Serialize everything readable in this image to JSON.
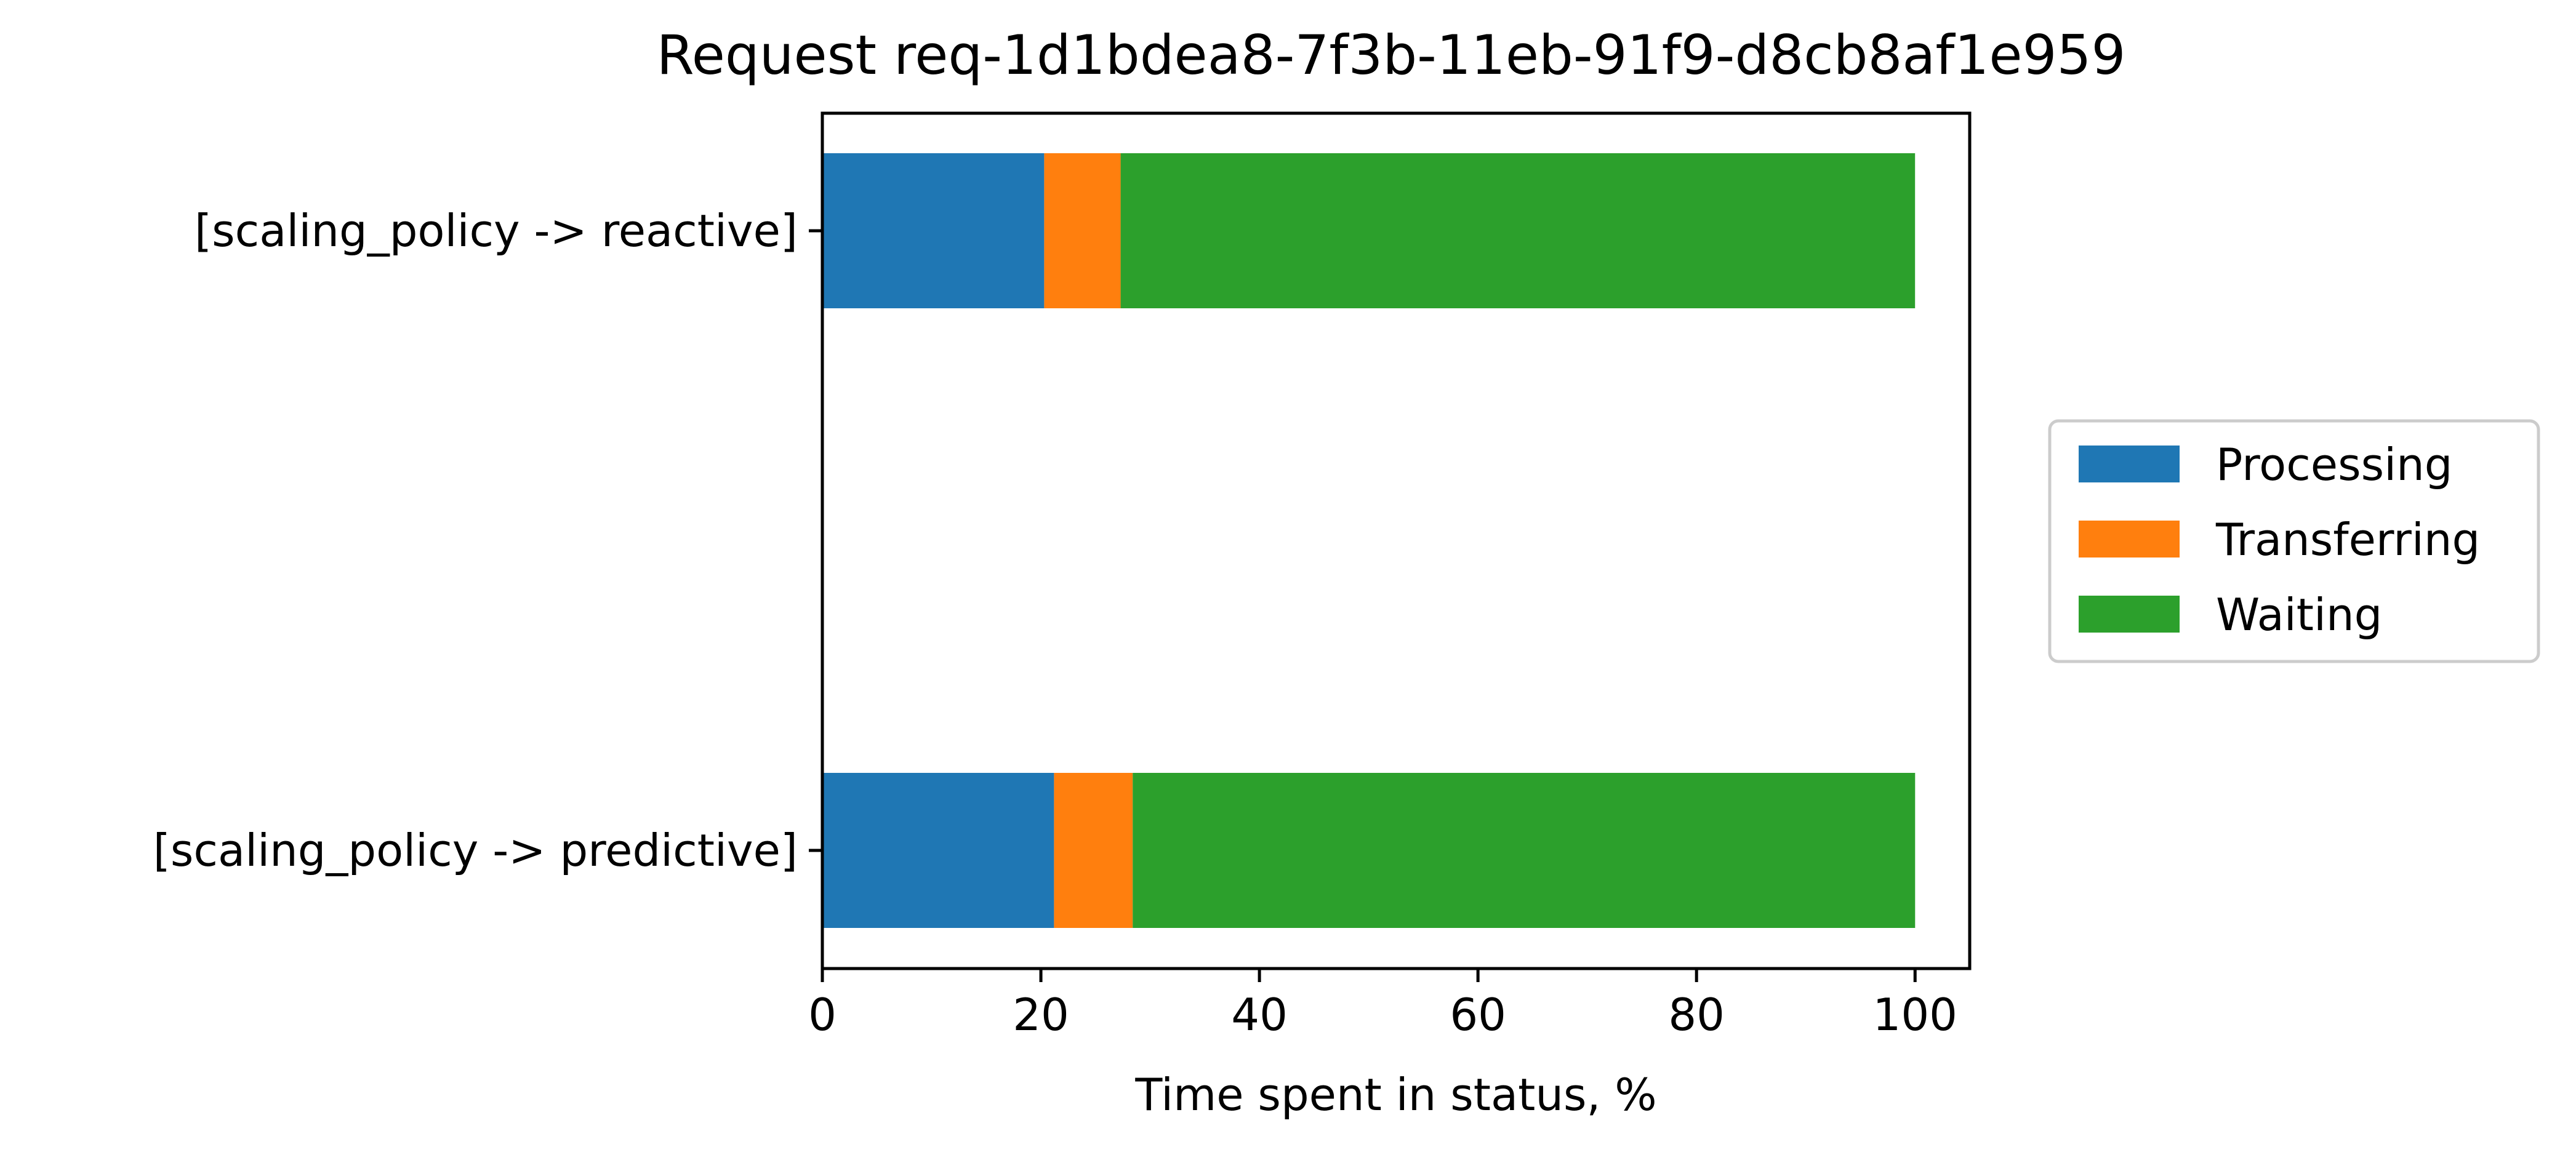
{
  "chart_data": {
    "type": "bar",
    "orientation": "horizontal",
    "stacked": true,
    "title": "Request req-1d1bdea8-7f3b-11eb-91f9-d8cb8af1e959",
    "xlabel": "Time spent in status, %",
    "ylabel": "",
    "xlim": [
      0,
      105
    ],
    "xticks": [
      0,
      20,
      40,
      60,
      80,
      100
    ],
    "categories": [
      "[scaling_policy -> reactive]",
      "[scaling_policy -> predictive]"
    ],
    "series": [
      {
        "name": "Processing",
        "color": "#1f77b4",
        "values": [
          20.3,
          21.2
        ]
      },
      {
        "name": "Transferring",
        "color": "#ff7f0e",
        "values": [
          7.0,
          7.2
        ]
      },
      {
        "name": "Waiting",
        "color": "#2ca02c",
        "values": [
          72.7,
          71.6
        ]
      }
    ],
    "grid": false,
    "legend_position": "right"
  }
}
